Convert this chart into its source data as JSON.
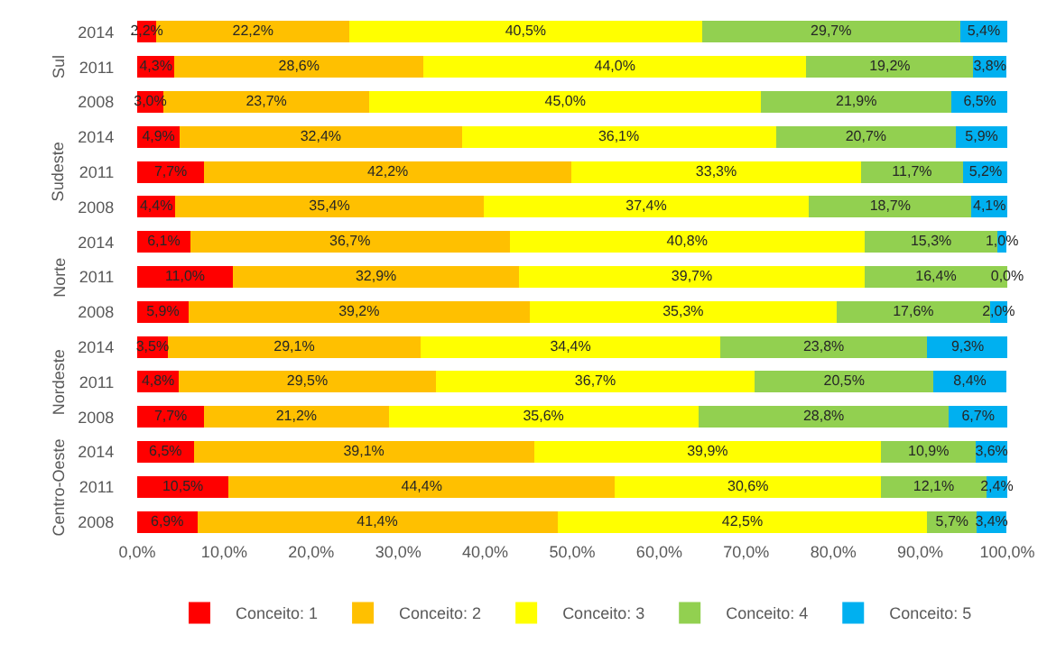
{
  "chart_data": {
    "type": "bar",
    "orientation": "horizontal",
    "stacked": true,
    "categories": [
      "2014",
      "2011",
      "2008",
      "2014",
      "2011",
      "2008",
      "2014",
      "2011",
      "2008",
      "2014",
      "2011",
      "2008",
      "2014",
      "2011",
      "2008"
    ],
    "annotations": [
      "Sul",
      "Sudeste",
      "Norte",
      "Nordeste",
      "Centro-Oeste"
    ],
    "series": [
      {
        "name": "Conceito: 1",
        "color": "#ff0000",
        "values": [
          2.2,
          4.3,
          3.0,
          4.9,
          7.7,
          4.4,
          6.1,
          11.0,
          5.9,
          3.5,
          4.8,
          7.7,
          6.5,
          10.5,
          6.9
        ],
        "value_labels": [
          "2,2%",
          "4,3%",
          "3,0%",
          "4,9%",
          "7,7%",
          "4,4%",
          "6,1%",
          "11,0%",
          "5,9%",
          "3,5%",
          "4,8%",
          "7,7%",
          "6,5%",
          "10,5%",
          "6,9%"
        ]
      },
      {
        "name": "Conceito: 2",
        "color": "#ffc000",
        "values": [
          22.2,
          28.6,
          23.7,
          32.4,
          42.2,
          35.4,
          36.7,
          32.9,
          39.2,
          29.1,
          29.5,
          21.2,
          39.1,
          44.4,
          41.4
        ],
        "value_labels": [
          "22,2%",
          "28,6%",
          "23,7%",
          "32,4%",
          "42,2%",
          "35,4%",
          "36,7%",
          "32,9%",
          "39,2%",
          "29,1%",
          "29,5%",
          "21,2%",
          "39,1%",
          "44,4%",
          "41,4%"
        ]
      },
      {
        "name": "Conceito: 3",
        "color": "#ffff00",
        "values": [
          40.5,
          44.0,
          45.0,
          36.1,
          33.3,
          37.4,
          40.8,
          39.7,
          35.3,
          34.4,
          36.7,
          35.6,
          39.9,
          30.6,
          42.5
        ],
        "value_labels": [
          "40,5%",
          "44,0%",
          "45,0%",
          "36,1%",
          "33,3%",
          "37,4%",
          "40,8%",
          "39,7%",
          "35,3%",
          "34,4%",
          "36,7%",
          "35,6%",
          "39,9%",
          "30,6%",
          "42,5%"
        ]
      },
      {
        "name": "Conceito: 4",
        "color": "#92d050",
        "values": [
          29.7,
          19.2,
          21.9,
          20.7,
          11.7,
          18.7,
          15.3,
          16.4,
          17.6,
          23.8,
          20.5,
          28.8,
          10.9,
          12.1,
          5.7
        ],
        "value_labels": [
          "29,7%",
          "19,2%",
          "21,9%",
          "20,7%",
          "11,7%",
          "18,7%",
          "15,3%",
          "16,4%",
          "17,6%",
          "23,8%",
          "20,5%",
          "28,8%",
          "10,9%",
          "12,1%",
          "5,7%"
        ]
      },
      {
        "name": "Conceito: 5",
        "color": "#00b0f0",
        "values": [
          5.4,
          3.8,
          6.5,
          5.9,
          5.2,
          4.1,
          1.0,
          0.0,
          2.0,
          9.3,
          8.4,
          6.7,
          3.6,
          2.4,
          3.4
        ],
        "value_labels": [
          "5,4%",
          "3,8%",
          "6,5%",
          "5,9%",
          "5,2%",
          "4,1%",
          "1,0%",
          "0,0%",
          "2,0%",
          "9,3%",
          "8,4%",
          "6,7%",
          "3,6%",
          "2,4%",
          "3,4%"
        ]
      }
    ],
    "xlim": [
      0,
      100
    ],
    "xticks": [
      {
        "value": 0,
        "label": "0,0%"
      },
      {
        "value": 10,
        "label": "10,0%"
      },
      {
        "value": 20,
        "label": "20,0%"
      },
      {
        "value": 30,
        "label": "30,0%"
      },
      {
        "value": 40,
        "label": "40,0%"
      },
      {
        "value": 50,
        "label": "50,0%"
      },
      {
        "value": 60,
        "label": "60,0%"
      },
      {
        "value": 70,
        "label": "70,0%"
      },
      {
        "value": 80,
        "label": "80,0%"
      },
      {
        "value": 90,
        "label": "90,0%"
      },
      {
        "value": 100,
        "label": "100,0%"
      }
    ],
    "legend": "bottom",
    "grid": false
  }
}
